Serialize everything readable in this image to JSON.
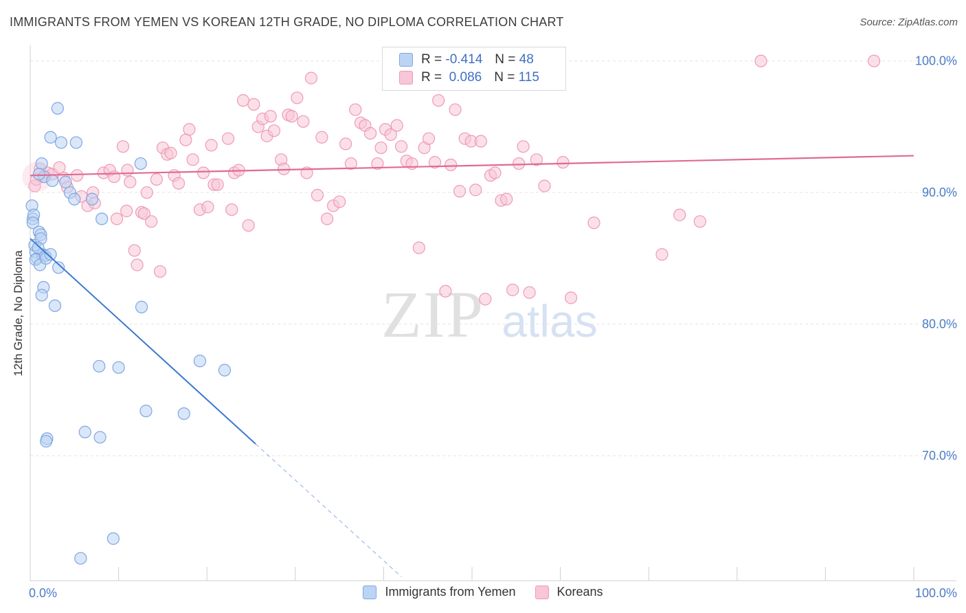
{
  "header": {
    "title": "IMMIGRANTS FROM YEMEN VS KOREAN 12TH GRADE, NO DIPLOMA CORRELATION CHART",
    "source": "Source: ZipAtlas.com"
  },
  "watermark": {
    "zip": "ZIP",
    "atlas": "atlas"
  },
  "legend": {
    "rows": [
      {
        "r_label": "R =",
        "r_value": "-0.414",
        "n_label": "N =",
        "n_value": "48"
      },
      {
        "r_label": "R =",
        "r_value": "0.086",
        "n_label": "N =",
        "n_value": "115"
      }
    ]
  },
  "colors": {
    "yemen_fill": "#bcd4f4",
    "yemen_stroke": "#7ea6e0",
    "yemen_line": "#3a78d0",
    "korean_fill": "#f8c6d6",
    "korean_stroke": "#ee9ab6",
    "korean_line": "#e06a92",
    "grid": "#e4e4e4",
    "tick_text": "#4a7cc7"
  },
  "chart_data": {
    "type": "scatter",
    "xlabel": "",
    "ylabel": "12th Grade, No Diploma",
    "xlim": [
      0,
      100
    ],
    "ylim": [
      60.5,
      101.5
    ],
    "x_tick_labels": [
      "0.0%",
      "100.0%"
    ],
    "y_ticks": [
      70,
      80,
      90,
      100
    ],
    "y_tick_labels": [
      "70.0%",
      "80.0%",
      "90.0%",
      "100.0%"
    ],
    "grid": true,
    "legend_placement": "bottom-center",
    "series": [
      {
        "name": "Immigrants from Yemen",
        "points": [
          [
            0.2,
            89.0
          ],
          [
            0.3,
            88.0
          ],
          [
            0.4,
            88.3
          ],
          [
            0.3,
            87.7
          ],
          [
            0.6,
            85.5
          ],
          [
            0.8,
            85.0
          ],
          [
            1.0,
            87.0
          ],
          [
            1.2,
            86.8
          ],
          [
            1.4,
            85.3
          ],
          [
            0.6,
            84.9
          ],
          [
            1.7,
            85.2
          ],
          [
            1.1,
            84.5
          ],
          [
            1.5,
            82.8
          ],
          [
            1.3,
            82.2
          ],
          [
            1.8,
            85.0
          ],
          [
            2.3,
            85.3
          ],
          [
            3.2,
            84.3
          ],
          [
            4.5,
            90.0
          ],
          [
            5.0,
            89.5
          ],
          [
            5.2,
            93.8
          ],
          [
            3.5,
            93.8
          ],
          [
            2.3,
            94.2
          ],
          [
            3.1,
            96.4
          ],
          [
            1.3,
            92.2
          ],
          [
            1.6,
            91.2
          ],
          [
            1.0,
            91.4
          ],
          [
            2.5,
            90.9
          ],
          [
            4.0,
            90.8
          ],
          [
            7.0,
            89.5
          ],
          [
            8.1,
            88.0
          ],
          [
            12.5,
            92.2
          ],
          [
            2.8,
            81.4
          ],
          [
            12.6,
            81.3
          ],
          [
            7.8,
            76.8
          ],
          [
            10.0,
            76.7
          ],
          [
            19.2,
            77.2
          ],
          [
            22.0,
            76.5
          ],
          [
            13.1,
            73.4
          ],
          [
            17.4,
            73.2
          ],
          [
            6.2,
            71.8
          ],
          [
            7.9,
            71.4
          ],
          [
            1.9,
            71.3
          ],
          [
            1.8,
            71.1
          ],
          [
            9.4,
            63.7
          ],
          [
            5.7,
            62.2
          ],
          [
            0.5,
            86.0
          ],
          [
            1.2,
            86.5
          ],
          [
            0.9,
            85.8
          ]
        ]
      },
      {
        "name": "Koreans",
        "points": [
          [
            0.5,
            90.5
          ],
          [
            0.7,
            91.0
          ],
          [
            1.1,
            91.8
          ],
          [
            1.5,
            91.2
          ],
          [
            2.0,
            91.5
          ],
          [
            2.5,
            91.4
          ],
          [
            3.3,
            91.9
          ],
          [
            3.8,
            91.1
          ],
          [
            4.2,
            90.4
          ],
          [
            5.3,
            91.3
          ],
          [
            5.8,
            89.7
          ],
          [
            6.5,
            89.0
          ],
          [
            7.1,
            90.0
          ],
          [
            7.3,
            89.2
          ],
          [
            8.3,
            91.5
          ],
          [
            9.0,
            91.7
          ],
          [
            9.5,
            91.2
          ],
          [
            9.8,
            88.0
          ],
          [
            10.5,
            93.5
          ],
          [
            10.9,
            88.6
          ],
          [
            11.0,
            91.7
          ],
          [
            11.3,
            90.8
          ],
          [
            11.8,
            85.6
          ],
          [
            12.1,
            84.5
          ],
          [
            12.6,
            88.5
          ],
          [
            12.9,
            88.4
          ],
          [
            13.2,
            90.0
          ],
          [
            13.7,
            87.8
          ],
          [
            14.3,
            91.0
          ],
          [
            14.7,
            84.0
          ],
          [
            15.0,
            93.4
          ],
          [
            15.5,
            92.9
          ],
          [
            15.9,
            93.0
          ],
          [
            16.3,
            91.3
          ],
          [
            16.8,
            90.7
          ],
          [
            17.6,
            94.0
          ],
          [
            18.0,
            94.8
          ],
          [
            18.4,
            92.5
          ],
          [
            19.2,
            88.7
          ],
          [
            19.6,
            91.5
          ],
          [
            20.1,
            88.9
          ],
          [
            20.5,
            93.6
          ],
          [
            20.8,
            90.6
          ],
          [
            21.2,
            90.6
          ],
          [
            22.4,
            94.1
          ],
          [
            22.8,
            88.7
          ],
          [
            23.1,
            91.5
          ],
          [
            23.6,
            91.7
          ],
          [
            24.1,
            97.0
          ],
          [
            24.7,
            87.5
          ],
          [
            25.3,
            96.7
          ],
          [
            25.8,
            95.0
          ],
          [
            26.3,
            95.6
          ],
          [
            26.8,
            94.3
          ],
          [
            27.2,
            95.8
          ],
          [
            27.6,
            94.7
          ],
          [
            28.4,
            92.5
          ],
          [
            28.7,
            91.8
          ],
          [
            29.2,
            95.9
          ],
          [
            29.6,
            95.8
          ],
          [
            30.2,
            97.2
          ],
          [
            30.9,
            95.4
          ],
          [
            31.3,
            91.5
          ],
          [
            31.8,
            98.7
          ],
          [
            32.5,
            89.8
          ],
          [
            33.0,
            94.2
          ],
          [
            33.6,
            88.0
          ],
          [
            34.3,
            89.0
          ],
          [
            35.0,
            89.3
          ],
          [
            35.7,
            93.7
          ],
          [
            36.3,
            92.2
          ],
          [
            36.8,
            96.3
          ],
          [
            37.4,
            95.3
          ],
          [
            37.9,
            95.1
          ],
          [
            38.5,
            94.5
          ],
          [
            39.3,
            92.2
          ],
          [
            39.7,
            93.4
          ],
          [
            40.2,
            94.8
          ],
          [
            40.8,
            94.4
          ],
          [
            41.5,
            95.1
          ],
          [
            42.0,
            93.5
          ],
          [
            42.6,
            92.4
          ],
          [
            43.2,
            92.2
          ],
          [
            44.0,
            85.8
          ],
          [
            44.6,
            93.4
          ],
          [
            45.1,
            94.1
          ],
          [
            45.8,
            92.3
          ],
          [
            46.2,
            97.0
          ],
          [
            47.0,
            82.5
          ],
          [
            47.6,
            92.1
          ],
          [
            48.1,
            96.3
          ],
          [
            48.6,
            90.1
          ],
          [
            49.2,
            94.1
          ],
          [
            49.9,
            93.9
          ],
          [
            50.4,
            90.2
          ],
          [
            51.0,
            93.9
          ],
          [
            51.5,
            81.9
          ],
          [
            52.1,
            91.3
          ],
          [
            52.6,
            91.5
          ],
          [
            53.3,
            89.4
          ],
          [
            53.9,
            89.5
          ],
          [
            54.6,
            82.6
          ],
          [
            55.3,
            92.2
          ],
          [
            55.8,
            93.5
          ],
          [
            56.5,
            82.4
          ],
          [
            57.3,
            92.5
          ],
          [
            58.2,
            90.5
          ],
          [
            60.3,
            92.3
          ],
          [
            61.2,
            82.0
          ],
          [
            63.8,
            87.7
          ],
          [
            71.5,
            85.3
          ],
          [
            73.5,
            88.3
          ],
          [
            75.8,
            87.8
          ],
          [
            82.7,
            100.0
          ],
          [
            95.5,
            100.0
          ]
        ]
      }
    ],
    "trend_lines": [
      {
        "series": "Immigrants from Yemen",
        "x": [
          0.0,
          25.5
        ],
        "y": [
          86.5,
          70.9
        ],
        "extension_x": [
          25.5,
          42.0
        ],
        "extension_y": [
          70.9,
          60.8
        ]
      },
      {
        "series": "Koreans",
        "x": [
          0.0,
          100.0
        ],
        "y": [
          91.3,
          92.8
        ]
      }
    ]
  }
}
